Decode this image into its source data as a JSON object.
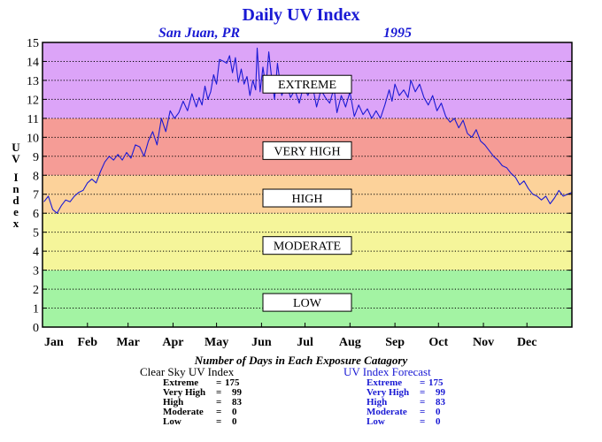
{
  "chart_data": {
    "type": "line",
    "title": "Daily UV Index",
    "subtitle_location": "San Juan, PR",
    "subtitle_year": "1995",
    "ylabel": "UV Index",
    "ylim": [
      0,
      15
    ],
    "yticks": [
      "0",
      "1",
      "2",
      "3",
      "4",
      "5",
      "6",
      "7",
      "8",
      "9",
      "10",
      "11",
      "12",
      "13",
      "14",
      "15"
    ],
    "xlim": [
      0,
      365
    ],
    "month_labels": [
      "Jan",
      "Feb",
      "Mar",
      "Apr",
      "May",
      "Jun",
      "Jul",
      "Aug",
      "Sep",
      "Oct",
      "Nov",
      "Dec"
    ],
    "month_starts": [
      1,
      32,
      60,
      91,
      121,
      152,
      182,
      213,
      244,
      274,
      305,
      335
    ],
    "grid": true,
    "bands": [
      {
        "label": "LOW",
        "from": 0,
        "to": 3,
        "color": "#a3f3a3"
      },
      {
        "label": "MODERATE",
        "from": 3,
        "to": 6,
        "color": "#f5f59a"
      },
      {
        "label": "HIGH",
        "from": 6,
        "to": 8,
        "color": "#fcd29a"
      },
      {
        "label": "VERY HIGH",
        "from": 8,
        "to": 11,
        "color": "#f59c96"
      },
      {
        "label": "EXTREME",
        "from": 11,
        "to": 15,
        "color": "#dca4f8"
      }
    ],
    "band_label_values": [
      12.8,
      9.3,
      6.8,
      4.3,
      1.3
    ],
    "series": [
      {
        "color": "#1a1ad4",
        "points": [
          [
            1,
            6.6
          ],
          [
            4,
            6.9
          ],
          [
            7,
            6.2
          ],
          [
            10,
            6.0
          ],
          [
            13,
            6.4
          ],
          [
            16,
            6.7
          ],
          [
            19,
            6.6
          ],
          [
            22,
            6.9
          ],
          [
            25,
            7.1
          ],
          [
            28,
            7.2
          ],
          [
            31,
            7.6
          ],
          [
            34,
            7.8
          ],
          [
            37,
            7.6
          ],
          [
            40,
            8.2
          ],
          [
            43,
            8.7
          ],
          [
            46,
            9.0
          ],
          [
            49,
            8.8
          ],
          [
            52,
            9.1
          ],
          [
            55,
            8.8
          ],
          [
            58,
            9.2
          ],
          [
            61,
            8.9
          ],
          [
            64,
            9.6
          ],
          [
            67,
            9.5
          ],
          [
            70,
            9.0
          ],
          [
            73,
            9.8
          ],
          [
            76,
            10.3
          ],
          [
            79,
            9.6
          ],
          [
            82,
            11.0
          ],
          [
            85,
            10.3
          ],
          [
            88,
            11.4
          ],
          [
            91,
            11.0
          ],
          [
            94,
            11.3
          ],
          [
            97,
            11.9
          ],
          [
            100,
            11.4
          ],
          [
            103,
            12.3
          ],
          [
            106,
            11.6
          ],
          [
            108,
            12.1
          ],
          [
            110,
            11.7
          ],
          [
            112,
            12.7
          ],
          [
            114,
            12.0
          ],
          [
            116,
            12.4
          ],
          [
            118,
            13.3
          ],
          [
            120,
            12.8
          ],
          [
            122,
            14.1
          ],
          [
            125,
            14.0
          ],
          [
            127,
            13.9
          ],
          [
            129,
            14.3
          ],
          [
            131,
            13.4
          ],
          [
            133,
            14.2
          ],
          [
            135,
            12.9
          ],
          [
            137,
            13.6
          ],
          [
            139,
            12.8
          ],
          [
            141,
            13.2
          ],
          [
            143,
            12.2
          ],
          [
            145,
            13.0
          ],
          [
            147,
            12.5
          ],
          [
            148,
            14.7
          ],
          [
            150,
            12.4
          ],
          [
            152,
            13.7
          ],
          [
            154,
            12.6
          ],
          [
            156,
            14.5
          ],
          [
            158,
            13.1
          ],
          [
            160,
            12.0
          ],
          [
            162,
            13.9
          ],
          [
            165,
            12.2
          ],
          [
            168,
            12.9
          ],
          [
            171,
            12.1
          ],
          [
            174,
            12.5
          ],
          [
            177,
            11.8
          ],
          [
            180,
            12.7
          ],
          [
            183,
            12.2
          ],
          [
            186,
            12.8
          ],
          [
            189,
            11.6
          ],
          [
            192,
            12.5
          ],
          [
            195,
            12.1
          ],
          [
            198,
            11.8
          ],
          [
            201,
            12.6
          ],
          [
            203,
            11.3
          ],
          [
            206,
            12.2
          ],
          [
            209,
            11.6
          ],
          [
            212,
            12.4
          ],
          [
            215,
            11.1
          ],
          [
            218,
            11.7
          ],
          [
            221,
            11.2
          ],
          [
            224,
            11.5
          ],
          [
            227,
            11.0
          ],
          [
            230,
            11.4
          ],
          [
            233,
            11.0
          ],
          [
            236,
            11.7
          ],
          [
            239,
            12.5
          ],
          [
            241,
            11.9
          ],
          [
            243,
            12.8
          ],
          [
            246,
            12.2
          ],
          [
            249,
            12.5
          ],
          [
            252,
            12.1
          ],
          [
            254,
            13.0
          ],
          [
            257,
            12.4
          ],
          [
            260,
            12.8
          ],
          [
            263,
            12.1
          ],
          [
            266,
            11.7
          ],
          [
            269,
            12.2
          ],
          [
            272,
            11.4
          ],
          [
            275,
            11.8
          ],
          [
            278,
            11.1
          ],
          [
            281,
            10.8
          ],
          [
            284,
            11.0
          ],
          [
            287,
            10.5
          ],
          [
            290,
            10.9
          ],
          [
            293,
            10.2
          ],
          [
            296,
            10.0
          ],
          [
            299,
            10.4
          ],
          [
            302,
            9.8
          ],
          [
            305,
            9.6
          ],
          [
            308,
            9.3
          ],
          [
            311,
            9.0
          ],
          [
            314,
            8.8
          ],
          [
            317,
            8.5
          ],
          [
            320,
            8.4
          ],
          [
            323,
            8.1
          ],
          [
            326,
            7.9
          ],
          [
            329,
            7.5
          ],
          [
            332,
            7.7
          ],
          [
            335,
            7.3
          ],
          [
            338,
            7.0
          ],
          [
            341,
            6.9
          ],
          [
            344,
            6.7
          ],
          [
            347,
            6.9
          ],
          [
            350,
            6.5
          ],
          [
            353,
            6.8
          ],
          [
            356,
            7.2
          ],
          [
            359,
            6.9
          ],
          [
            362,
            7.0
          ],
          [
            365,
            7.1
          ]
        ]
      }
    ]
  },
  "summary": {
    "title": "Number of Days in Each Exposure Catagory",
    "clear_sky": {
      "heading": "Clear Sky UV Index",
      "rows": [
        {
          "label": "Extreme",
          "eq": "=",
          "value": "175"
        },
        {
          "label": "Very High",
          "eq": "=",
          "value": "99"
        },
        {
          "label": "High",
          "eq": "=",
          "value": "83"
        },
        {
          "label": "Moderate",
          "eq": "=",
          "value": "0"
        },
        {
          "label": "Low",
          "eq": "=",
          "value": "0"
        }
      ]
    },
    "forecast": {
      "heading": "UV Index Forecast",
      "rows": [
        {
          "label": "Extreme",
          "eq": "=",
          "value": "175"
        },
        {
          "label": "Very High",
          "eq": "=",
          "value": "99"
        },
        {
          "label": "High",
          "eq": "=",
          "value": "83"
        },
        {
          "label": "Moderate",
          "eq": "=",
          "value": "0"
        },
        {
          "label": "Low",
          "eq": "=",
          "value": "0"
        }
      ]
    }
  }
}
